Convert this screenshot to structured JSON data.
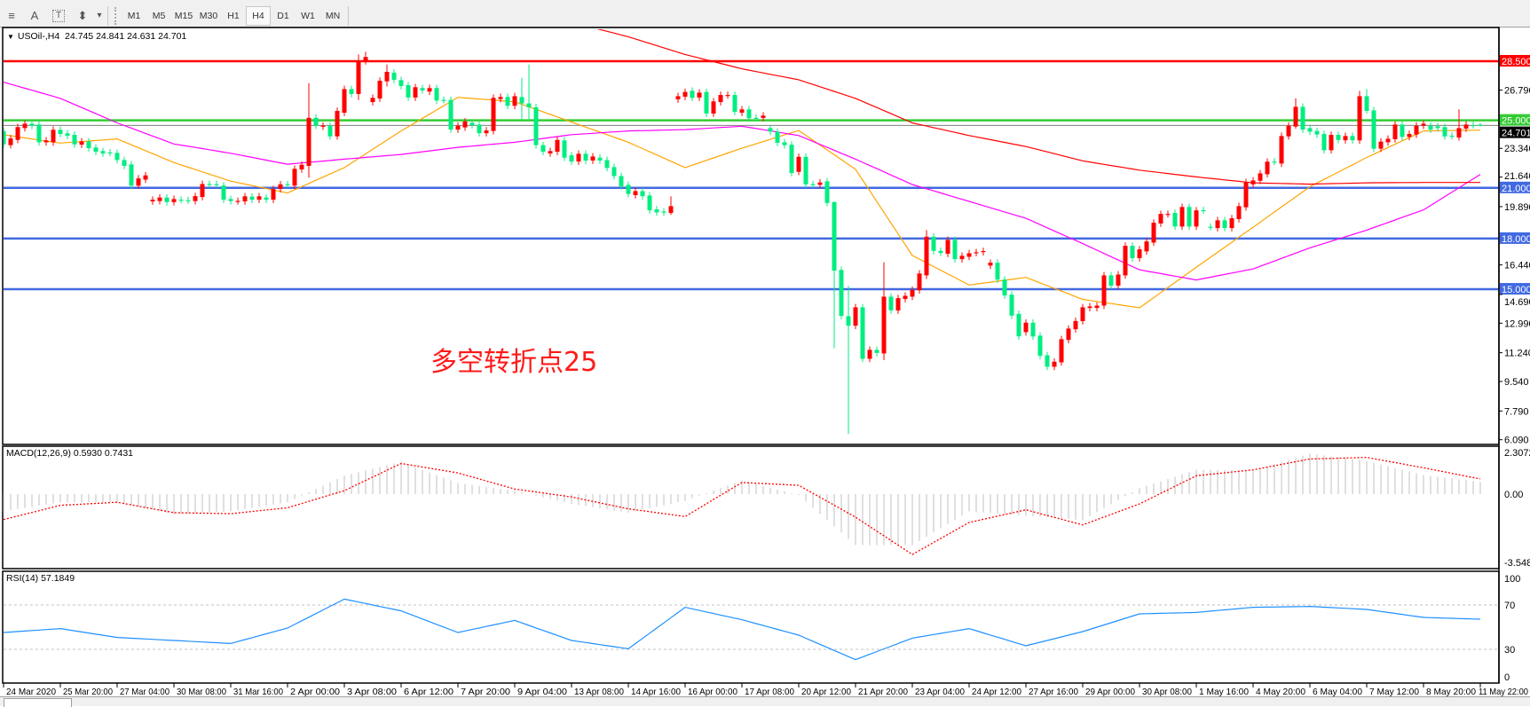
{
  "toolbar": {
    "tools": [
      {
        "icon": "horizontal-lines-f-icon",
        "glyph": "≡"
      },
      {
        "icon": "text-a-icon",
        "glyph": "A"
      },
      {
        "icon": "text-label-icon",
        "glyph": "T"
      },
      {
        "icon": "arrows-icon",
        "glyph": "⬍"
      }
    ],
    "dropdown_glyph": "▾",
    "timeframes": [
      "M1",
      "M5",
      "M15",
      "M30",
      "H1",
      "H4",
      "D1",
      "W1",
      "MN"
    ],
    "selected_timeframe": "H4"
  },
  "chart": {
    "legend_arrow": "▼",
    "symbol": "USOil-,H4",
    "ohlc": "24.745 24.841 24.631 24.701",
    "annotation": "多空转折点25"
  },
  "chart_data": {
    "type": "candlestick",
    "colors": {
      "up": "#ff0000",
      "down": "#00ee80",
      "ma_fast": "#ffa500",
      "ma_mid": "#ff00ff",
      "ma_slow": "#ff0000",
      "grid": "#000000",
      "current_price": "#808080",
      "macd_hist": "#c0c0c0",
      "macd_signal": "#ff0000",
      "rsi": "#1e90ff",
      "rsi_levels": "#c0c0c0"
    },
    "price_range": [
      6.09,
      30.3
    ],
    "time_labels": [
      "24 Mar 2020",
      "25 Mar 20:00",
      "27 Mar 04:00",
      "30 Mar 08:00",
      "31 Mar 16:00",
      "2 Apr 00:00",
      "3 Apr 08:00",
      "6 Apr 12:00",
      "7 Apr 20:00",
      "9 Apr 04:00",
      "13 Apr 08:00",
      "14 Apr 16:00",
      "16 Apr 00:00",
      "17 Apr 08:00",
      "20 Apr 12:00",
      "21 Apr 20:00",
      "23 Apr 04:00",
      "24 Apr 12:00",
      "27 Apr 16:00",
      "29 Apr 00:00",
      "30 Apr 08:00",
      "1 May 16:00",
      "4 May 20:00",
      "6 May 04:00",
      "7 May 12:00",
      "8 May 20:00",
      "11 May 22:00"
    ],
    "price_ticks": [
      "26.790",
      "23.340",
      "21.640",
      "19.890",
      "16.440",
      "14.690",
      "12.990",
      "11.240",
      "9.540",
      "7.790",
      "6.090"
    ],
    "horizontal_lines": [
      {
        "value": 28.5,
        "label": "28.500",
        "color": "#ff0000"
      },
      {
        "value": 25.0,
        "label": "25.000",
        "color": "#33cc33"
      },
      {
        "value": 21.0,
        "label": "21.000",
        "color": "#4169e1"
      },
      {
        "value": 18.0,
        "label": "18.000",
        "color": "#4169e1"
      },
      {
        "value": 15.0,
        "label": "15.000",
        "color": "#4169e1"
      }
    ],
    "current_price": {
      "value": 24.701,
      "label": "24.701"
    },
    "candles": [
      [
        24.37,
        23.58
      ],
      [
        23.53,
        23.93
      ],
      [
        23.84,
        24.6
      ],
      [
        24.54,
        24.8
      ],
      [
        24.8,
        24.68
      ],
      [
        24.75,
        23.7
      ],
      [
        23.7,
        23.81
      ],
      [
        23.7,
        24.44
      ],
      [
        24.44,
        24.19
      ],
      [
        24.23,
        24.09
      ],
      [
        24.14,
        23.58
      ],
      [
        23.56,
        23.75
      ],
      [
        23.75,
        23.35
      ],
      [
        23.39,
        23.14
      ],
      [
        23.18,
        23.04
      ],
      [
        23.1,
        23.07
      ],
      [
        23.07,
        22.65
      ],
      [
        22.65,
        22.3
      ],
      [
        22.39,
        21.13
      ],
      [
        21.13,
        21.56
      ],
      [
        21.49,
        21.74
      ],
      [
        20.2,
        20.3
      ],
      [
        20.22,
        20.43
      ],
      [
        20.43,
        20.16
      ],
      [
        20.16,
        20.34
      ],
      [
        20.3,
        20.29
      ],
      [
        20.27,
        20.25
      ],
      [
        20.22,
        20.51
      ],
      [
        20.46,
        21.23
      ],
      [
        21.23,
        21.21
      ],
      [
        21.22,
        21.21
      ],
      [
        21.14,
        20.3
      ],
      [
        20.34,
        20.22
      ],
      [
        20.21,
        20.23
      ],
      [
        20.2,
        20.5
      ],
      [
        20.48,
        20.3
      ],
      [
        20.3,
        20.5
      ],
      [
        20.43,
        20.3
      ],
      [
        20.3,
        20.93
      ],
      [
        20.93,
        21.21
      ],
      [
        21.22,
        21.2
      ],
      [
        21.13,
        22.13
      ],
      [
        22.09,
        22.37
      ],
      [
        22.3,
        25.15,
        27.2,
        21.6
      ],
      [
        25.15,
        24.68
      ],
      [
        24.63,
        24.68
      ],
      [
        24.68,
        24.05
      ],
      [
        24.05,
        25.56
      ],
      [
        25.45,
        26.85
      ],
      [
        26.85,
        26.56
      ],
      [
        26.56,
        28.48,
        28.9,
        26.2
      ],
      [
        28.48,
        28.75,
        29.06,
        28.3
      ],
      [
        26.08,
        26.33
      ],
      [
        26.29,
        27.34
      ],
      [
        27.31,
        27.87,
        28.3,
        27.0
      ],
      [
        27.82,
        27.4
      ],
      [
        27.38,
        27.03
      ],
      [
        27.08,
        26.35
      ],
      [
        26.35,
        26.96
      ],
      [
        26.91,
        26.77
      ],
      [
        26.7,
        26.91
      ],
      [
        26.91,
        26.17
      ],
      [
        26.21,
        26.2
      ],
      [
        26.21,
        24.45
      ],
      [
        24.45,
        24.68
      ],
      [
        24.58,
        24.93
      ],
      [
        24.86,
        24.72
      ],
      [
        24.75,
        24.24
      ],
      [
        24.24,
        24.4
      ],
      [
        24.37,
        26.33
      ],
      [
        26.26,
        26.38
      ],
      [
        26.38,
        25.86
      ],
      [
        25.86,
        26.43
      ],
      [
        26.38,
        26.0,
        27.5,
        25.0
      ],
      [
        26.0,
        25.77,
        28.3,
        25.0
      ],
      [
        25.77,
        23.53
      ],
      [
        23.53,
        23.14
      ],
      [
        23.04,
        23.18
      ],
      [
        23.14,
        23.84
      ],
      [
        23.81,
        22.79
      ],
      [
        22.93,
        22.56
      ],
      [
        22.56,
        23.02
      ],
      [
        23.02,
        22.62
      ],
      [
        22.62,
        22.86
      ],
      [
        22.79,
        22.62
      ],
      [
        22.65,
        22.18
      ],
      [
        22.23,
        21.7
      ],
      [
        21.7,
        21.09
      ],
      [
        21.18,
        20.64
      ],
      [
        20.57,
        20.81
      ],
      [
        20.81,
        20.51
      ],
      [
        20.55,
        19.67
      ],
      [
        19.73,
        19.55
      ],
      [
        19.6,
        19.55
      ],
      [
        19.52,
        19.92,
        20.5,
        19.4
      ],
      [
        26.24,
        26.43
      ],
      [
        26.4,
        26.68
      ],
      [
        26.75,
        26.33
      ],
      [
        26.35,
        26.64
      ],
      [
        26.68,
        25.4
      ],
      [
        25.4,
        26.12
      ],
      [
        26.08,
        26.5
      ],
      [
        26.48,
        26.5
      ],
      [
        26.5,
        25.5
      ],
      [
        25.45,
        25.65
      ],
      [
        25.65,
        25.12
      ],
      [
        25.15,
        25.14
      ],
      [
        25.14,
        25.28
      ],
      [
        24.54,
        24.33
      ],
      [
        24.33,
        23.67
      ],
      [
        23.7,
        23.53
      ],
      [
        23.56,
        21.88
      ],
      [
        21.95,
        22.84
      ],
      [
        22.84,
        21.21
      ],
      [
        21.22,
        21.2
      ],
      [
        21.18,
        21.32
      ],
      [
        21.39,
        20.11
      ],
      [
        20.16,
        16.1,
        20.2,
        11.5
      ],
      [
        16.14,
        13.42
      ],
      [
        13.4,
        12.84,
        15.2,
        6.42
      ],
      [
        12.84,
        13.93
      ],
      [
        13.93,
        10.88
      ],
      [
        10.88,
        11.41
      ],
      [
        11.41,
        11.23
      ],
      [
        11.2,
        14.56,
        16.6,
        10.8
      ],
      [
        14.56,
        13.75
      ],
      [
        13.74,
        14.47
      ],
      [
        14.42,
        14.61
      ],
      [
        14.56,
        14.96
      ],
      [
        14.94,
        15.93
      ],
      [
        15.82,
        18.11,
        18.5,
        15.6
      ],
      [
        18.11,
        17.27
      ],
      [
        17.27,
        17.15
      ],
      [
        17.1,
        17.92
      ],
      [
        17.92,
        16.78
      ],
      [
        16.78,
        16.98
      ],
      [
        16.92,
        17.13
      ],
      [
        17.15,
        17.19
      ],
      [
        17.2,
        17.26
      ],
      [
        16.4,
        16.57
      ],
      [
        16.57,
        15.57
      ],
      [
        15.57,
        14.63
      ],
      [
        14.68,
        13.44
      ],
      [
        13.54,
        12.21
      ],
      [
        12.46,
        13.02
      ],
      [
        13.02,
        12.2
      ],
      [
        12.25,
        11.06
      ],
      [
        11.09,
        10.41
      ],
      [
        10.41,
        10.71
      ],
      [
        10.67,
        12.04
      ],
      [
        12.0,
        12.67
      ],
      [
        12.63,
        13.12
      ],
      [
        13.11,
        13.93
      ],
      [
        13.89,
        13.98
      ],
      [
        13.89,
        14.03
      ],
      [
        14.03,
        15.82
      ],
      [
        15.82,
        15.21
      ],
      [
        15.21,
        15.87
      ],
      [
        15.82,
        17.57
      ],
      [
        17.57,
        16.84
      ],
      [
        16.84,
        17.36
      ],
      [
        17.24,
        17.83
      ],
      [
        17.76,
        18.94
      ],
      [
        18.89,
        19.46
      ],
      [
        19.44,
        19.46
      ],
      [
        19.52,
        18.71
      ],
      [
        18.71,
        19.87
      ],
      [
        19.87,
        18.71
      ],
      [
        18.71,
        19.67
      ],
      [
        19.68,
        19.67
      ],
      [
        18.7,
        18.68
      ],
      [
        18.62,
        19.08
      ],
      [
        19.08,
        18.62
      ],
      [
        18.62,
        19.2
      ],
      [
        19.15,
        19.92
      ],
      [
        19.85,
        21.34
      ],
      [
        21.21,
        21.44
      ],
      [
        21.42,
        21.86
      ],
      [
        21.81,
        22.55
      ],
      [
        22.56,
        22.55
      ],
      [
        22.44,
        24.07
      ],
      [
        24.05,
        24.68
      ],
      [
        24.63,
        25.8,
        26.3,
        24.5
      ],
      [
        25.8,
        24.45
      ],
      [
        24.54,
        24.33
      ],
      [
        24.37,
        24.16
      ],
      [
        24.19,
        23.23
      ],
      [
        23.23,
        24.14
      ],
      [
        24.14,
        23.84
      ],
      [
        23.82,
        24.07
      ],
      [
        24.07,
        23.82
      ],
      [
        23.81,
        26.43,
        26.75,
        23.6
      ],
      [
        26.43,
        25.56,
        26.85,
        25.4
      ],
      [
        25.59,
        23.32
      ],
      [
        23.32,
        23.74
      ],
      [
        23.7,
        23.91
      ],
      [
        23.88,
        24.75
      ],
      [
        24.75,
        24.02
      ],
      [
        24.02,
        24.19
      ],
      [
        24.16,
        24.68
      ],
      [
        24.68,
        24.8
      ],
      [
        24.68,
        24.45
      ],
      [
        24.65,
        24.54
      ],
      [
        24.6,
        24.05
      ],
      [
        24.09,
        24.07
      ],
      [
        23.98,
        24.54,
        25.65,
        23.8
      ],
      [
        24.51,
        24.75
      ],
      [
        24.72,
        24.72
      ],
      [
        24.745,
        24.701,
        24.841,
        24.631
      ]
    ],
    "moving_averages_at_time_labels": [
      {
        "key": "ma_fast",
        "values": [
          24.15,
          23.65,
          23.9,
          22.5,
          21.4,
          20.7,
          22.2,
          24.37,
          26.36,
          26.1,
          24.9,
          23.7,
          22.2,
          23.35,
          24.4,
          22.1,
          17.0,
          15.25,
          15.7,
          14.4,
          13.9,
          16.3,
          18.67,
          21.07,
          22.8,
          24.37,
          24.42
        ]
      },
      {
        "key": "ma_mid",
        "values": [
          27.26,
          26.3,
          24.85,
          23.6,
          23.05,
          22.4,
          22.7,
          22.98,
          23.4,
          23.7,
          24.15,
          24.37,
          24.45,
          24.65,
          24.1,
          22.7,
          21.2,
          20.2,
          19.2,
          17.7,
          16.15,
          15.55,
          16.2,
          17.45,
          18.5,
          19.7,
          21.8
        ]
      },
      {
        "key": "ma_slow",
        "values": [
          null,
          null,
          null,
          null,
          null,
          null,
          null,
          null,
          null,
          null,
          30.8,
          29.95,
          28.9,
          28.05,
          27.4,
          26.3,
          24.85,
          24.1,
          23.45,
          22.6,
          22.05,
          21.65,
          21.3,
          21.22,
          21.3,
          21.32,
          21.32
        ]
      }
    ],
    "macd": {
      "label": "MACD(12,26,9) 0.5930 0.7431",
      "ticks": [
        {
          "value": 2.3072,
          "label": "2.3072"
        },
        {
          "value": 0,
          "label": "0.00"
        },
        {
          "value": -3.5484,
          "label": "-3.5484"
        }
      ],
      "histogram_at_time_labels": [
        -0.84,
        -0.4,
        -0.4,
        -0.99,
        -0.84,
        -0.4,
        0.9,
        1.58,
        0.54,
        0.17,
        -0.48,
        -0.91,
        -0.33,
        0.68,
        -0.05,
        -2.5,
        -2.5,
        -0.84,
        -1.06,
        -1.28,
        0.29,
        1.19,
        1.16,
        1.99,
        1.62,
        0.93,
        0.593
      ],
      "signal_at_time_labels": [
        -1.25,
        -0.55,
        -0.4,
        -0.91,
        -0.96,
        -0.67,
        0.17,
        1.5,
        1.04,
        0.25,
        -0.14,
        -0.72,
        -1.1,
        0.57,
        0.43,
        -1.13,
        -2.96,
        -1.39,
        -0.77,
        -1.51,
        -0.48,
        0.9,
        1.19,
        1.72,
        1.8,
        1.29,
        0.7431
      ]
    },
    "rsi": {
      "label": "RSI(14) 57.1849",
      "ticks": [
        {
          "value": 100,
          "label": "100"
        },
        {
          "value": 70,
          "label": "70"
        },
        {
          "value": 30,
          "label": "30"
        },
        {
          "value": 0,
          "label": "0"
        }
      ],
      "levels": [
        70,
        30
      ],
      "values_at_time_labels": [
        45.2,
        48.7,
        40.7,
        38.0,
        35.3,
        49.2,
        75.3,
        64.7,
        45.2,
        56.1,
        38.0,
        30.5,
        67.9,
        56.7,
        42.8,
        20.7,
        40.1,
        48.7,
        33.2,
        46.0,
        62.0,
        63.3,
        67.9,
        68.7,
        66.0,
        58.8,
        57.18
      ]
    }
  }
}
